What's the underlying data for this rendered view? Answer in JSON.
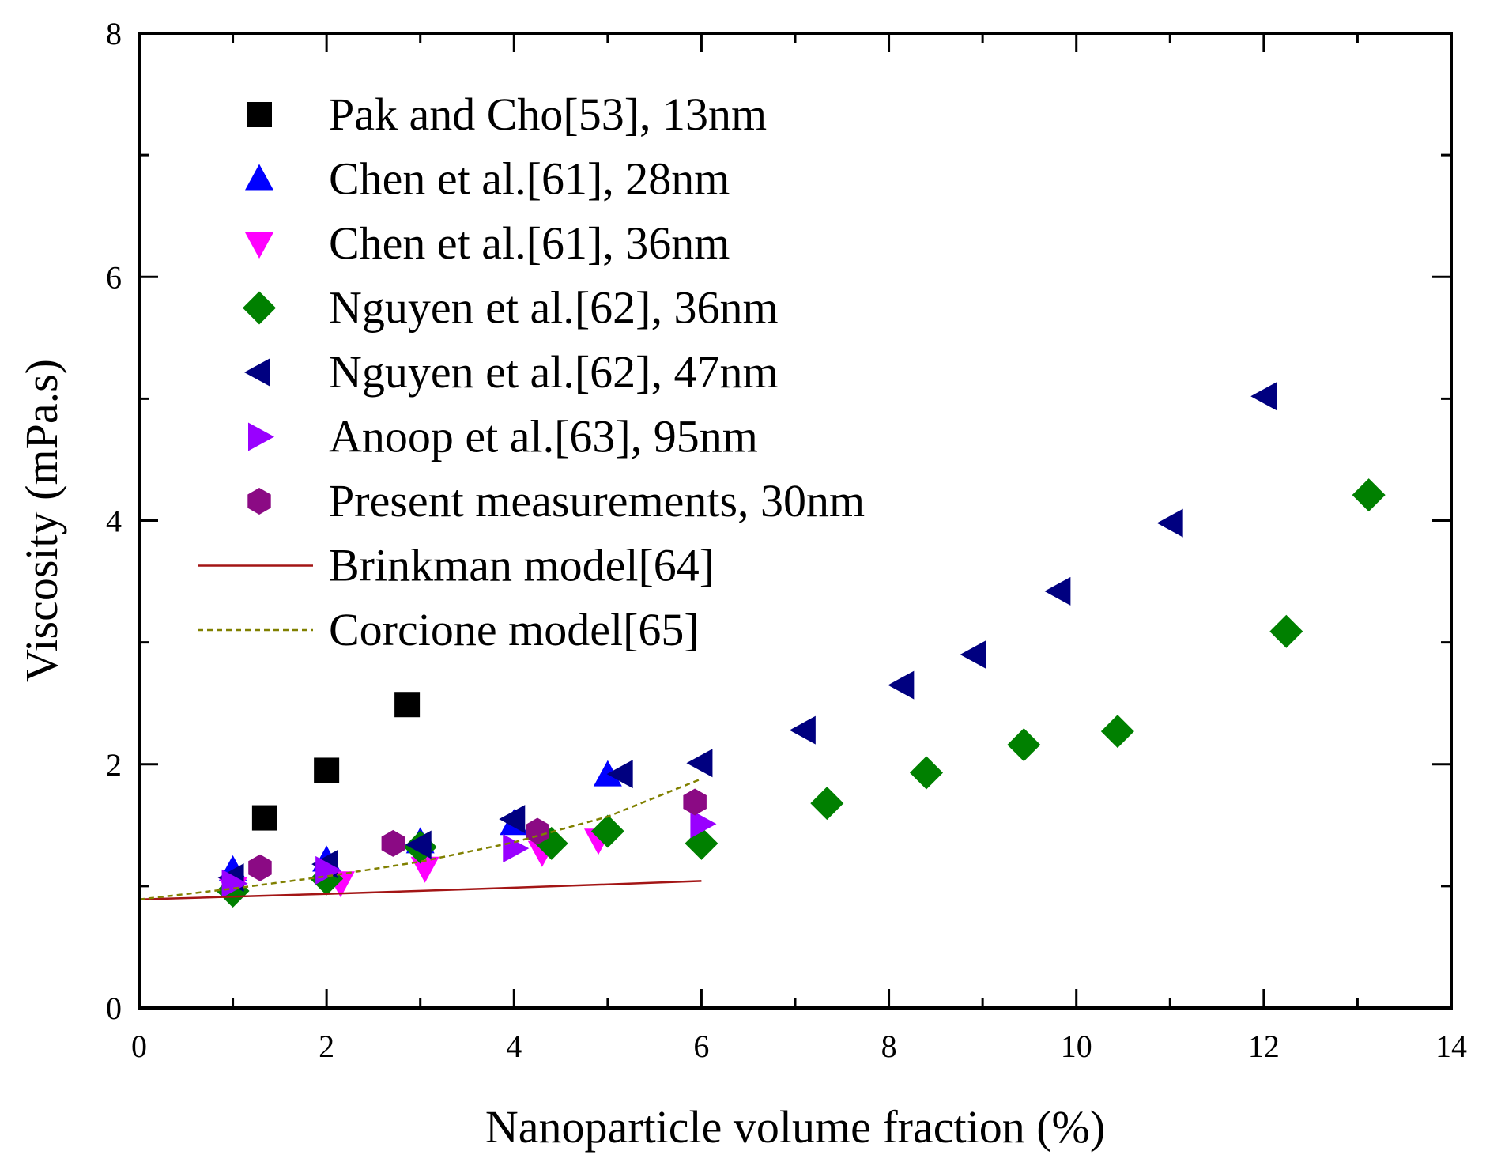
{
  "chart_data": {
    "type": "scatter",
    "title": "",
    "xlabel": "Nanoparticle volume fraction (%)",
    "ylabel": "Viscosity (mPa.s)",
    "xlim": [
      0,
      14
    ],
    "ylim": [
      0,
      8
    ],
    "xticks": [
      0,
      2,
      4,
      6,
      8,
      10,
      12,
      14
    ],
    "yticks": [
      0,
      2,
      4,
      6,
      8
    ],
    "grid": false,
    "legend_position": "top-left",
    "series": [
      {
        "name": "Pak and Cho[53], 13nm",
        "marker": "square",
        "color": "#000000",
        "x": [
          1.34,
          2.0,
          2.86
        ],
        "y": [
          1.56,
          1.95,
          2.49
        ]
      },
      {
        "name": "Chen et al.[61], 28nm",
        "marker": "triangle-up",
        "color": "#0000ff",
        "x": [
          1.0,
          2.0,
          3.0,
          4.0,
          5.0
        ],
        "y": [
          1.13,
          1.21,
          1.36,
          1.51,
          1.91
        ]
      },
      {
        "name": "Chen et al.[61], 36nm",
        "marker": "triangle-down",
        "color": "#ff00ff",
        "x": [
          1.0,
          2.15,
          3.05,
          4.3,
          4.9
        ],
        "y": [
          0.98,
          1.03,
          1.15,
          1.28,
          1.38
        ]
      },
      {
        "name": "Nguyen et al.[62], 36nm",
        "marker": "diamond",
        "color": "#008000",
        "x": [
          1.0,
          2.0,
          3.0,
          4.4,
          5.0,
          6.0,
          7.34,
          8.4,
          9.44,
          10.44,
          12.24,
          13.12
        ],
        "y": [
          0.96,
          1.06,
          1.32,
          1.35,
          1.45,
          1.35,
          1.68,
          1.93,
          2.16,
          2.27,
          3.09,
          4.21
        ]
      },
      {
        "name": "Nguyen et al.[62], 47nm",
        "marker": "triangle-left",
        "color": "#000080",
        "x": [
          1.0,
          2.0,
          3.0,
          4.0,
          5.15,
          6.0,
          7.1,
          8.15,
          8.92,
          9.82,
          11.02,
          12.02
        ],
        "y": [
          1.07,
          1.18,
          1.34,
          1.55,
          1.92,
          2.01,
          2.28,
          2.65,
          2.9,
          3.42,
          3.98,
          5.02
        ]
      },
      {
        "name": "Anoop et al.[63], 95nm",
        "marker": "triangle-right",
        "color": "#9900ff",
        "x": [
          1.0,
          2.0,
          4.0,
          6.0
        ],
        "y": [
          1.02,
          1.13,
          1.31,
          1.51
        ]
      },
      {
        "name": "Present measurements, 30nm",
        "marker": "hexagon",
        "color": "#8b0a84",
        "x": [
          1.29,
          2.71,
          4.25,
          5.93
        ],
        "y": [
          1.15,
          1.35,
          1.45,
          1.69
        ]
      },
      {
        "name": "Brinkman model[64]",
        "marker": "line-solid",
        "color": "#a31515",
        "x": [
          0,
          1,
          2,
          3,
          4,
          5,
          6
        ],
        "y": [
          0.89,
          0.913,
          0.936,
          0.961,
          0.987,
          1.014,
          1.042
        ]
      },
      {
        "name": "Corcione model[65]",
        "marker": "line-dashed",
        "color": "#808000",
        "x": [
          0,
          1,
          2,
          3,
          4,
          5,
          6
        ],
        "y": [
          0.89,
          0.98,
          1.08,
          1.2,
          1.36,
          1.57,
          1.88
        ]
      }
    ]
  }
}
